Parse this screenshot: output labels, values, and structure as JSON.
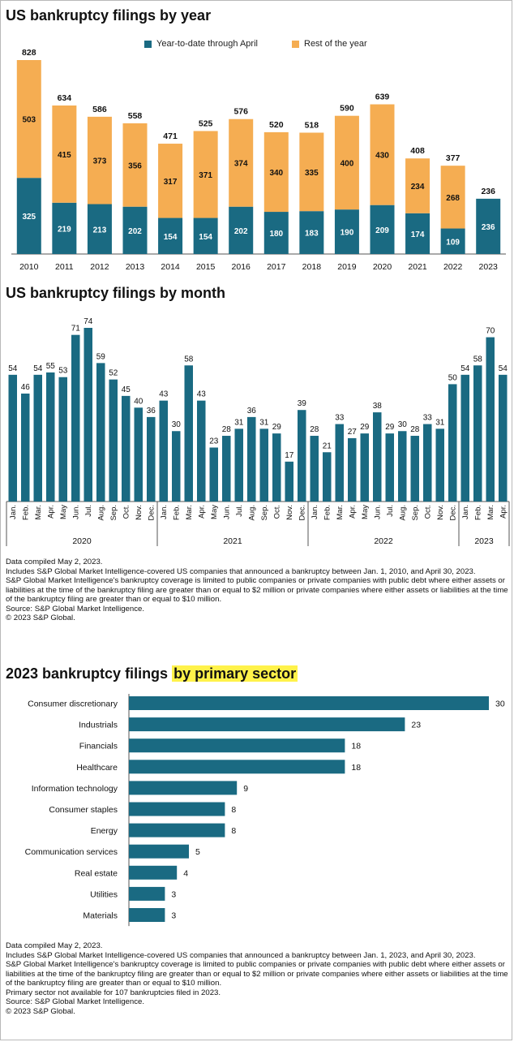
{
  "colors": {
    "teal": "#1a6a82",
    "orange": "#f5ad52",
    "axis": "#555555",
    "highlight": "#fff24a"
  },
  "yearly": {
    "title": "US bankruptcy filings by year",
    "legend": [
      {
        "label": "Year-to-date through April",
        "color": "#1a6a82"
      },
      {
        "label": "Rest of the year",
        "color": "#f5ad52"
      }
    ]
  },
  "monthly": {
    "title": "US bankruptcy filings by month"
  },
  "sector": {
    "title_prefix": "2023 bankruptcy filings ",
    "title_highlight": "by primary sector"
  },
  "notes_top": [
    "Data compiled May 2, 2023.",
    "Includes S&P Global Market Intelligence-covered US companies that announced a bankruptcy between Jan. 1, 2010, and April 30, 2023.",
    "S&P Global Market Intelligence's bankruptcy coverage is limited to public companies or private companies with public debt where either assets or liabilities at the time of the bankruptcy filing are greater than or equal to $2 million or private companies where either assets or liabilities at the time of the bankruptcy filing are greater than or equal to $10 million.",
    "Source: S&P Global Market Intelligence.",
    "© 2023 S&P Global."
  ],
  "notes_bottom": [
    "Data compiled May 2, 2023.",
    "Includes S&P Global Market Intelligence-covered US companies that announced a bankruptcy between Jan. 1, 2023, and April 30, 2023.",
    "S&P Global Market Intelligence's bankruptcy coverage is limited to public companies or private companies with public debt where either assets or liabilities at the time of the bankruptcy filing are greater than or equal to $2 million or private companies where either assets or liabilities at the time of the bankruptcy filing are greater than or equal to $10 million.",
    "Primary sector not available for 107 bankruptcies filed in 2023.",
    "Source: S&P Global Market Intelligence.",
    "© 2023 S&P Global."
  ],
  "chart_data": [
    {
      "type": "bar",
      "stacked": true,
      "title": "US bankruptcy filings by year",
      "categories": [
        "2010",
        "2011",
        "2012",
        "2013",
        "2014",
        "2015",
        "2016",
        "2017",
        "2018",
        "2019",
        "2020",
        "2021",
        "2022",
        "2023"
      ],
      "series": [
        {
          "name": "Year-to-date through April",
          "values": [
            325,
            219,
            213,
            202,
            154,
            154,
            202,
            180,
            183,
            190,
            209,
            174,
            109,
            236
          ]
        },
        {
          "name": "Rest of the year",
          "values": [
            503,
            415,
            373,
            356,
            317,
            371,
            374,
            340,
            335,
            400,
            430,
            234,
            268,
            null
          ]
        }
      ],
      "totals": [
        828,
        634,
        586,
        558,
        471,
        525,
        576,
        520,
        518,
        590,
        639,
        408,
        377,
        236
      ],
      "ylim": [
        0,
        828
      ]
    },
    {
      "type": "bar",
      "title": "US bankruptcy filings by month",
      "categories": [
        "Jan.",
        "Feb.",
        "Mar.",
        "Apr.",
        "May",
        "Jun.",
        "Jul.",
        "Aug.",
        "Sep.",
        "Oct.",
        "Nov.",
        "Dec.",
        "Jan.",
        "Feb.",
        "Mar.",
        "Apr.",
        "May",
        "Jun.",
        "Jul.",
        "Aug.",
        "Sep.",
        "Oct.",
        "Nov.",
        "Dec.",
        "Jan.",
        "Feb.",
        "Mar.",
        "Apr.",
        "May",
        "Jun.",
        "Jul.",
        "Aug.",
        "Sep.",
        "Oct.",
        "Nov.",
        "Dec.",
        "Jan.",
        "Feb.",
        "Mar.",
        "Apr."
      ],
      "values": [
        54,
        46,
        54,
        55,
        53,
        71,
        74,
        59,
        52,
        45,
        40,
        36,
        43,
        30,
        58,
        43,
        23,
        28,
        31,
        36,
        31,
        29,
        17,
        39,
        28,
        21,
        33,
        27,
        29,
        38,
        29,
        30,
        28,
        33,
        31,
        50,
        54,
        58,
        70,
        54
      ],
      "groups": [
        {
          "label": "2020",
          "count": 12
        },
        {
          "label": "2021",
          "count": 12
        },
        {
          "label": "2022",
          "count": 12
        },
        {
          "label": "2023",
          "count": 4
        }
      ],
      "ylim": [
        0,
        74
      ]
    },
    {
      "type": "bar",
      "orientation": "horizontal",
      "title": "2023 bankruptcy filings by primary sector",
      "categories": [
        "Consumer discretionary",
        "Industrials",
        "Financials",
        "Healthcare",
        "Information technology",
        "Consumer staples",
        "Energy",
        "Communication services",
        "Real estate",
        "Utilities",
        "Materials"
      ],
      "values": [
        30,
        23,
        18,
        18,
        9,
        8,
        8,
        5,
        4,
        3,
        3
      ],
      "xlim": [
        0,
        30
      ]
    }
  ]
}
